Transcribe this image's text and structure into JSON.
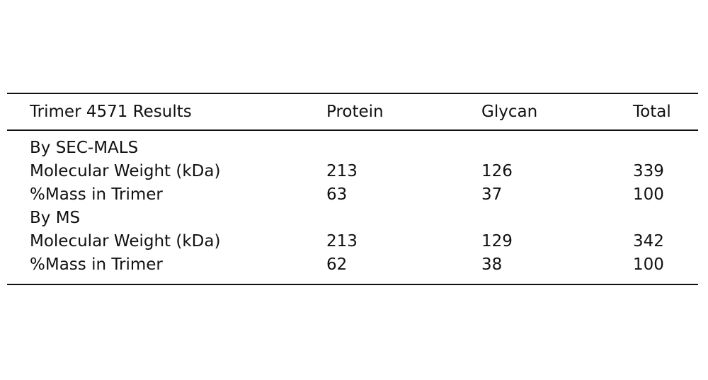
{
  "table": {
    "columns": [
      "Trimer 4571 Results",
      "Protein",
      "Glycan",
      "Total"
    ],
    "rows": [
      {
        "type": "section",
        "label": "By SEC-MALS"
      },
      {
        "type": "data",
        "label": "Molecular Weight (kDa)",
        "protein": "213",
        "glycan": "126",
        "total": "339"
      },
      {
        "type": "data",
        "label": "%Mass in Trimer",
        "protein": "63",
        "glycan": "37",
        "total": "100"
      },
      {
        "type": "section",
        "label": "By MS"
      },
      {
        "type": "data",
        "label": "Molecular Weight (kDa)",
        "protein": "213",
        "glycan": "129",
        "total": "342"
      },
      {
        "type": "data",
        "label": "%Mass in Trimer",
        "protein": "62",
        "glycan": "38",
        "total": "100"
      }
    ]
  }
}
